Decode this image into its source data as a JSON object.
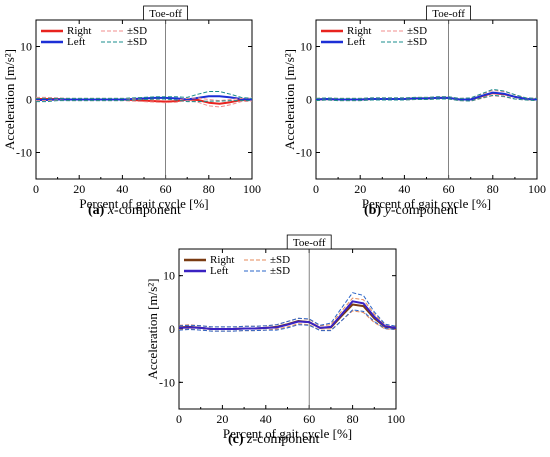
{
  "figure": {
    "captions": [
      {
        "letter": "(a)",
        "component": "x",
        "suffix": "-component"
      },
      {
        "letter": "(b)",
        "component": "y",
        "suffix": "-component"
      },
      {
        "letter": "(c)",
        "component": "z",
        "suffix": "-component"
      }
    ]
  },
  "chart_data": [
    {
      "type": "line",
      "xlabel": "Percent of gait cycle [%]",
      "ylabel": "Acceleration [m/s²]",
      "xlim": [
        0,
        100
      ],
      "ylim": [
        -15,
        15
      ],
      "xticks": [
        0,
        20,
        40,
        60,
        80,
        100
      ],
      "yticks": [
        -10,
        0,
        10
      ],
      "annotation": {
        "label": "Toe-off",
        "x": 60
      },
      "legend": {
        "placement": "top-left",
        "entries": [
          "Right",
          "Left",
          "±SD",
          "±SD"
        ]
      },
      "series": [
        {
          "name": "Right",
          "color": "#e8231e",
          "style": "solid",
          "x": [
            0,
            5,
            10,
            15,
            20,
            25,
            30,
            35,
            40,
            45,
            50,
            55,
            60,
            65,
            70,
            75,
            80,
            85,
            90,
            95,
            100
          ],
          "y": [
            0.1,
            0.1,
            0.1,
            0,
            0,
            0,
            0,
            0,
            0,
            -0.1,
            -0.2,
            -0.3,
            -0.4,
            -0.3,
            0,
            -0.1,
            -0.6,
            -0.8,
            -0.5,
            -0.1,
            0
          ]
        },
        {
          "name": "Left",
          "color": "#1c2fd6",
          "style": "solid",
          "x": [
            0,
            5,
            10,
            15,
            20,
            25,
            30,
            35,
            40,
            45,
            50,
            55,
            60,
            65,
            70,
            75,
            80,
            85,
            90,
            95,
            100
          ],
          "y": [
            -0.1,
            -0.1,
            0,
            0,
            0,
            0,
            0,
            0,
            0,
            0.1,
            0.2,
            0.3,
            0.3,
            0.2,
            0,
            0.3,
            0.6,
            0.6,
            0.4,
            0.1,
            0
          ]
        },
        {
          "name": "Right ±SD upper",
          "color": "#f08c8c",
          "style": "dashed",
          "x": [
            0,
            5,
            10,
            15,
            20,
            25,
            30,
            35,
            40,
            45,
            50,
            55,
            60,
            65,
            70,
            75,
            80,
            85,
            90,
            95,
            100
          ],
          "y": [
            0.4,
            0.4,
            0.3,
            0.2,
            0.2,
            0.2,
            0.2,
            0.2,
            0.2,
            0.1,
            0,
            -0.1,
            -0.2,
            -0.1,
            0.2,
            0.3,
            0,
            -0.2,
            0,
            0.2,
            0.3
          ]
        },
        {
          "name": "Right ±SD lower",
          "color": "#f08c8c",
          "style": "dashed",
          "x": [
            0,
            5,
            10,
            15,
            20,
            25,
            30,
            35,
            40,
            45,
            50,
            55,
            60,
            65,
            70,
            75,
            80,
            85,
            90,
            95,
            100
          ],
          "y": [
            -0.2,
            -0.2,
            -0.1,
            -0.2,
            -0.2,
            -0.2,
            -0.2,
            -0.2,
            -0.2,
            -0.3,
            -0.4,
            -0.5,
            -0.6,
            -0.5,
            -0.2,
            -0.5,
            -1.2,
            -1.4,
            -1,
            -0.4,
            -0.3
          ]
        },
        {
          "name": "Left ±SD upper",
          "color": "#1a8c8c",
          "style": "dashed",
          "x": [
            0,
            5,
            10,
            15,
            20,
            25,
            30,
            35,
            40,
            45,
            50,
            55,
            60,
            65,
            70,
            75,
            80,
            85,
            90,
            95,
            100
          ],
          "y": [
            0.2,
            0.2,
            0.2,
            0.2,
            0.2,
            0.2,
            0.2,
            0.2,
            0.2,
            0.3,
            0.4,
            0.5,
            0.5,
            0.5,
            0.4,
            1.0,
            1.5,
            1.5,
            1.0,
            0.4,
            0.2
          ]
        },
        {
          "name": "Left ±SD lower",
          "color": "#1a8c8c",
          "style": "dashed",
          "x": [
            0,
            5,
            10,
            15,
            20,
            25,
            30,
            35,
            40,
            45,
            50,
            55,
            60,
            65,
            70,
            75,
            80,
            85,
            90,
            95,
            100
          ],
          "y": [
            -0.4,
            -0.4,
            -0.2,
            -0.2,
            -0.2,
            -0.2,
            -0.2,
            -0.2,
            -0.2,
            -0.1,
            0,
            0.1,
            0.1,
            -0.1,
            -0.4,
            -0.4,
            -0.3,
            -0.3,
            -0.2,
            -0.2,
            -0.2
          ]
        }
      ]
    },
    {
      "type": "line",
      "xlabel": "Percent of gait cycle [%]",
      "ylabel": "Acceleration [m/s²]",
      "xlim": [
        0,
        100
      ],
      "ylim": [
        -15,
        15
      ],
      "xticks": [
        0,
        20,
        40,
        60,
        80,
        100
      ],
      "yticks": [
        -10,
        0,
        10
      ],
      "annotation": {
        "label": "Toe-off",
        "x": 60
      },
      "legend": {
        "placement": "top-left",
        "entries": [
          "Right",
          "Left",
          "±SD",
          "±SD"
        ]
      },
      "series": [
        {
          "name": "Right",
          "color": "#e8231e",
          "style": "solid",
          "x": [
            0,
            5,
            10,
            15,
            20,
            25,
            30,
            35,
            40,
            45,
            50,
            55,
            60,
            65,
            70,
            75,
            80,
            85,
            90,
            95,
            100
          ],
          "y": [
            0,
            0.1,
            0,
            0,
            0,
            0.1,
            0.1,
            0.1,
            0.1,
            0.2,
            0.2,
            0.3,
            0.3,
            0,
            0,
            0.6,
            1.2,
            1,
            0.5,
            0.1,
            0
          ]
        },
        {
          "name": "Left",
          "color": "#1c2fd6",
          "style": "solid",
          "x": [
            0,
            5,
            10,
            15,
            20,
            25,
            30,
            35,
            40,
            45,
            50,
            55,
            60,
            65,
            70,
            75,
            80,
            85,
            90,
            95,
            100
          ],
          "y": [
            0,
            0.1,
            0,
            0,
            0,
            0.1,
            0.1,
            0.1,
            0.1,
            0.2,
            0.2,
            0.3,
            0.3,
            0,
            0,
            0.7,
            1.3,
            1.1,
            0.5,
            0.1,
            0
          ]
        },
        {
          "name": "Right ±SD upper",
          "color": "#f08c8c",
          "style": "dashed",
          "x": [
            0,
            5,
            10,
            15,
            20,
            25,
            30,
            35,
            40,
            45,
            50,
            55,
            60,
            65,
            70,
            75,
            80,
            85,
            90,
            95,
            100
          ],
          "y": [
            0.2,
            0.3,
            0.2,
            0.2,
            0.2,
            0.3,
            0.3,
            0.3,
            0.3,
            0.4,
            0.4,
            0.5,
            0.5,
            0.2,
            0.3,
            1.0,
            1.7,
            1.5,
            0.9,
            0.3,
            0.2
          ]
        },
        {
          "name": "Right ±SD lower",
          "color": "#f08c8c",
          "style": "dashed",
          "x": [
            0,
            5,
            10,
            15,
            20,
            25,
            30,
            35,
            40,
            45,
            50,
            55,
            60,
            65,
            70,
            75,
            80,
            85,
            90,
            95,
            100
          ],
          "y": [
            -0.2,
            -0.1,
            -0.2,
            -0.2,
            -0.2,
            -0.1,
            -0.1,
            -0.1,
            -0.1,
            0,
            0,
            0.1,
            0.1,
            -0.2,
            -0.3,
            0.2,
            0.7,
            0.5,
            0.1,
            -0.1,
            -0.2
          ]
        },
        {
          "name": "Left ±SD upper",
          "color": "#1a8c8c",
          "style": "dashed",
          "x": [
            0,
            5,
            10,
            15,
            20,
            25,
            30,
            35,
            40,
            45,
            50,
            55,
            60,
            65,
            70,
            75,
            80,
            85,
            90,
            95,
            100
          ],
          "y": [
            0.2,
            0.3,
            0.2,
            0.2,
            0.2,
            0.3,
            0.3,
            0.3,
            0.3,
            0.4,
            0.4,
            0.5,
            0.5,
            0.2,
            0.3,
            1.1,
            1.9,
            1.6,
            0.9,
            0.3,
            0.2
          ]
        },
        {
          "name": "Left ±SD lower",
          "color": "#1a8c8c",
          "style": "dashed",
          "x": [
            0,
            5,
            10,
            15,
            20,
            25,
            30,
            35,
            40,
            45,
            50,
            55,
            60,
            65,
            70,
            75,
            80,
            85,
            90,
            95,
            100
          ],
          "y": [
            -0.2,
            -0.1,
            -0.2,
            -0.2,
            -0.2,
            -0.1,
            -0.1,
            -0.1,
            -0.1,
            0,
            0,
            0.1,
            0.1,
            -0.2,
            -0.3,
            0.3,
            0.8,
            0.6,
            0.1,
            -0.1,
            -0.2
          ]
        }
      ]
    },
    {
      "type": "line",
      "xlabel": "Percent of gait cycle [%]",
      "ylabel": "Acceleration [m/s²]",
      "xlim": [
        0,
        100
      ],
      "ylim": [
        -15,
        15
      ],
      "xticks": [
        0,
        20,
        40,
        60,
        80,
        100
      ],
      "yticks": [
        -10,
        0,
        10
      ],
      "annotation": {
        "label": "Toe-off",
        "x": 60
      },
      "legend": {
        "placement": "top-left",
        "entries": [
          "Right",
          "Left",
          "±SD",
          "±SD"
        ]
      },
      "series": [
        {
          "name": "Right",
          "color": "#7a3b12",
          "style": "solid",
          "x": [
            0,
            5,
            10,
            15,
            20,
            25,
            30,
            35,
            40,
            45,
            50,
            55,
            60,
            65,
            70,
            75,
            80,
            85,
            90,
            95,
            100
          ],
          "y": [
            0.3,
            0.4,
            0.2,
            0,
            0,
            0,
            0.1,
            0.1,
            0.2,
            0.4,
            0.9,
            1.5,
            1.3,
            0.2,
            0.3,
            2.5,
            4.6,
            4.3,
            2.0,
            0.4,
            0.2
          ]
        },
        {
          "name": "Left",
          "color": "#3a22c2",
          "style": "solid",
          "x": [
            0,
            5,
            10,
            15,
            20,
            25,
            30,
            35,
            40,
            45,
            50,
            55,
            60,
            65,
            70,
            75,
            80,
            85,
            90,
            95,
            100
          ],
          "y": [
            0.2,
            0.3,
            0.2,
            0,
            0,
            0,
            0.1,
            0.1,
            0.2,
            0.3,
            0.8,
            1.4,
            1.3,
            0.2,
            0.4,
            2.8,
            5.2,
            4.8,
            2.3,
            0.5,
            0.2
          ]
        },
        {
          "name": "Right ±SD upper",
          "color": "#e58a5a",
          "style": "dashed",
          "x": [
            0,
            5,
            10,
            15,
            20,
            25,
            30,
            35,
            40,
            45,
            50,
            55,
            60,
            65,
            70,
            75,
            80,
            85,
            90,
            95,
            100
          ],
          "y": [
            0.7,
            0.8,
            0.6,
            0.4,
            0.4,
            0.4,
            0.5,
            0.5,
            0.6,
            0.8,
            1.4,
            2.0,
            1.8,
            0.6,
            0.8,
            3.4,
            5.8,
            5.5,
            2.8,
            0.8,
            0.5
          ]
        },
        {
          "name": "Right ±SD lower",
          "color": "#e58a5a",
          "style": "dashed",
          "x": [
            0,
            5,
            10,
            15,
            20,
            25,
            30,
            35,
            40,
            45,
            50,
            55,
            60,
            65,
            70,
            75,
            80,
            85,
            90,
            95,
            100
          ],
          "y": [
            -0.1,
            0,
            -0.2,
            -0.4,
            -0.4,
            -0.4,
            -0.3,
            -0.3,
            -0.2,
            0,
            0.4,
            1.0,
            0.8,
            -0.2,
            -0.2,
            1.6,
            3.4,
            3.1,
            1.2,
            0,
            -0.1
          ]
        },
        {
          "name": "Left ±SD upper",
          "color": "#2a64c8",
          "style": "dashed",
          "x": [
            0,
            5,
            10,
            15,
            20,
            25,
            30,
            35,
            40,
            45,
            50,
            55,
            60,
            65,
            70,
            75,
            80,
            85,
            90,
            95,
            100
          ],
          "y": [
            0.6,
            0.7,
            0.6,
            0.4,
            0.4,
            0.4,
            0.5,
            0.5,
            0.6,
            0.8,
            1.4,
            2.0,
            1.9,
            0.7,
            1.1,
            4.0,
            6.8,
            6.3,
            3.2,
            0.9,
            0.5
          ]
        },
        {
          "name": "Left ±SD lower",
          "color": "#2a64c8",
          "style": "dashed",
          "x": [
            0,
            5,
            10,
            15,
            20,
            25,
            30,
            35,
            40,
            45,
            50,
            55,
            60,
            65,
            70,
            75,
            80,
            85,
            90,
            95,
            100
          ],
          "y": [
            -0.2,
            -0.1,
            -0.2,
            -0.4,
            -0.4,
            -0.4,
            -0.3,
            -0.3,
            -0.2,
            -0.2,
            0.2,
            0.8,
            0.7,
            -0.3,
            -0.3,
            1.6,
            3.6,
            3.3,
            1.4,
            0.1,
            -0.1
          ]
        }
      ]
    }
  ]
}
